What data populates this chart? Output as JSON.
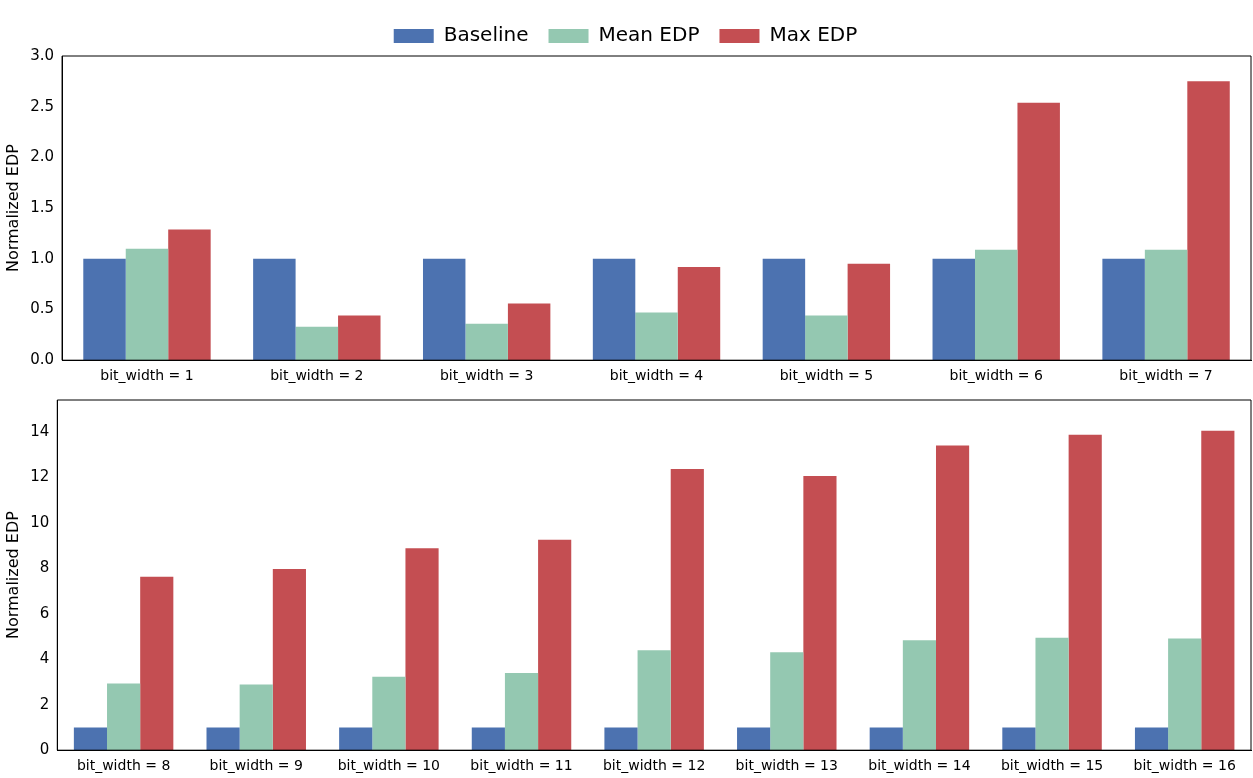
{
  "chart_data": [
    {
      "type": "bar",
      "ylabel": "Normalized EDP",
      "categories": [
        "bit_width = 1",
        "bit_width = 2",
        "bit_width = 3",
        "bit_width = 4",
        "bit_width = 5",
        "bit_width = 6",
        "bit_width = 7"
      ],
      "series": [
        {
          "name": "Baseline",
          "color": "#4c72b0",
          "values": [
            1,
            1,
            1,
            1,
            1,
            1,
            1
          ]
        },
        {
          "name": "Mean EDP",
          "color": "#94c8b1",
          "values": [
            1.1,
            0.33,
            0.36,
            0.47,
            0.44,
            1.09,
            1.09
          ]
        },
        {
          "name": "Max EDP",
          "color": "#c44e52",
          "values": [
            1.29,
            0.44,
            0.56,
            0.92,
            0.95,
            2.54,
            2.75
          ]
        }
      ],
      "ylim": [
        0,
        3
      ],
      "yticks": [
        {
          "value": 0,
          "label": "0.0"
        },
        {
          "value": 0.5,
          "label": "0.5"
        },
        {
          "value": 1,
          "label": "1.0"
        },
        {
          "value": 1.5,
          "label": "1.5"
        },
        {
          "value": 2,
          "label": "2.0"
        },
        {
          "value": 2.5,
          "label": "2.5"
        },
        {
          "value": 3,
          "label": "3.0"
        }
      ],
      "grid": false,
      "legend": "top"
    },
    {
      "type": "bar",
      "ylabel": "Normalized EDP",
      "categories": [
        "bit_width = 8",
        "bit_width = 9",
        "bit_width = 10",
        "bit_width = 11",
        "bit_width = 12",
        "bit_width = 13",
        "bit_width = 14",
        "bit_width = 15",
        "bit_width = 16"
      ],
      "series": [
        {
          "color": "#4c72b0",
          "values": [
            1,
            1,
            1,
            1,
            1,
            1,
            1,
            1,
            1
          ]
        },
        {
          "color": "#94c8b1",
          "values": [
            2.93,
            2.89,
            3.23,
            3.4,
            4.39,
            4.31,
            4.83,
            4.95,
            4.91
          ]
        },
        {
          "color": "#c44e52",
          "values": [
            7.63,
            7.97,
            8.88,
            9.26,
            12.37,
            12.06,
            13.4,
            13.87,
            14.05
          ]
        }
      ],
      "ylim": [
        0,
        15.4
      ],
      "yticks": [
        0,
        2,
        4,
        6,
        8,
        10,
        12,
        14
      ],
      "grid": false,
      "legend": false
    }
  ]
}
